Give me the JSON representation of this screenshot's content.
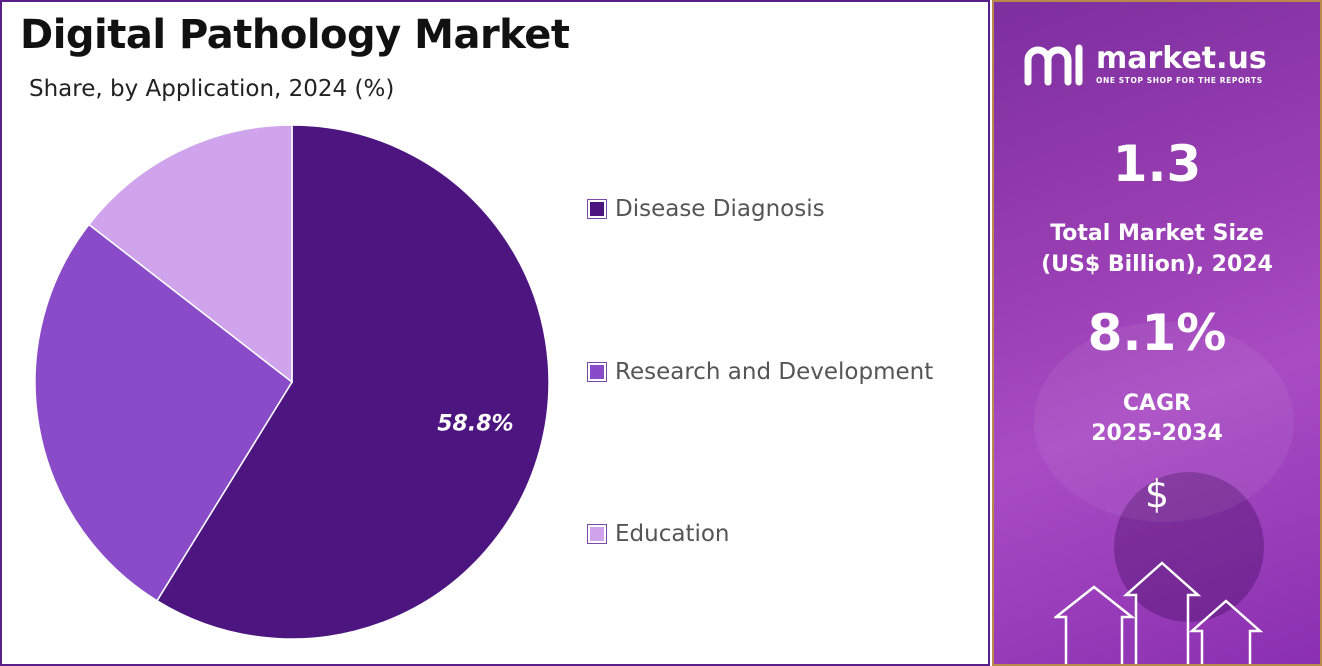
{
  "chart_data": {
    "type": "pie",
    "title": "Digital Pathology Market",
    "subtitle": "Share, by Application, 2024 (%)",
    "slices": [
      {
        "label": "Disease Diagnosis",
        "value": 58.8,
        "color": "#4d1580",
        "value_label": "58.8%"
      },
      {
        "label": "Research and Development",
        "value": 26.7,
        "color": "#8a4bc9"
      },
      {
        "label": "Education",
        "value": 14.5,
        "color": "#cfa4ec"
      }
    ],
    "legend_position": "right",
    "start_angle_deg": 0,
    "direction": "clockwise"
  },
  "sidebar": {
    "brand_name": "market.us",
    "brand_tagline": "ONE STOP SHOP FOR THE REPORTS",
    "market_size_value": "1.3",
    "market_size_label_line1": "Total Market Size",
    "market_size_label_line2": "(US$ Billion), 2024",
    "cagr_value": "8.1%",
    "cagr_label_line1": "CAGR",
    "cagr_label_line2": "2025-2034",
    "currency_symbol": "$",
    "colors": {
      "accent": "#9b3fb5",
      "frame": "#b8894a"
    }
  }
}
